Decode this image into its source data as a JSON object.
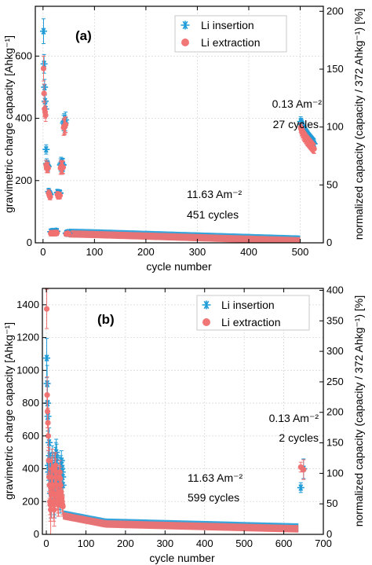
{
  "colors": {
    "insertion": "#1f9bd7",
    "extraction": "#f07070"
  },
  "chart_data": [
    {
      "type": "scatter",
      "panel_label": "(a)",
      "xlabel": "cycle number",
      "ylabel": "gravimetric charge capacity [Ahkg⁻¹]",
      "ylabel_right": "normalized capacity (capacity / 372 Ahkg⁻¹) [%]",
      "xlim": [
        -15,
        545
      ],
      "ylim": [
        0,
        760
      ],
      "y2lim": [
        0,
        204.3
      ],
      "xticks": [
        0,
        100,
        200,
        300,
        400,
        500
      ],
      "yticks": [
        0,
        200,
        400,
        600
      ],
      "y2ticks": [
        0,
        50,
        100,
        150,
        200
      ],
      "grid": true,
      "legend_position": "top-right",
      "legend": [
        "Li insertion",
        "Li extraction"
      ],
      "annotations": [
        {
          "lines": [
            "0.13 Am⁻²",
            "27 cycles"
          ],
          "anchor": [
            480,
            440
          ]
        },
        {
          "lines": [
            "11.63 Am⁻²",
            "451 cycles"
          ],
          "anchor": [
            125,
            250
          ]
        }
      ],
      "series": [
        {
          "name": "Li insertion",
          "marker": "star",
          "x": [
            1,
            2,
            3,
            4,
            5,
            6,
            7,
            8,
            9,
            10,
            11,
            12,
            13,
            14,
            15,
            16,
            17,
            18,
            19,
            20,
            21,
            22,
            23,
            24,
            25,
            26,
            27,
            28,
            29,
            30,
            31,
            32,
            33,
            34,
            35,
            36,
            37,
            38,
            39,
            40,
            41,
            42,
            43,
            44,
            45,
            46,
            47,
            48,
            49,
            50,
            501,
            502,
            503,
            504,
            505,
            506,
            507,
            508,
            509,
            510,
            511,
            512,
            513,
            514,
            515,
            516,
            517,
            518,
            519,
            520,
            521,
            522,
            523,
            524,
            525,
            526,
            527
          ],
          "y": [
            680,
            575,
            500,
            455,
            430,
            300,
            255,
            250,
            248,
            245,
            165,
            160,
            158,
            155,
            36,
            35,
            34,
            36,
            37,
            35,
            34,
            33,
            36,
            35,
            38,
            36,
            37,
            162,
            160,
            158,
            161,
            159,
            160,
            250,
            255,
            250,
            248,
            252,
            250,
            385,
            390,
            380,
            385,
            395,
            30,
            32,
            31,
            33,
            30,
            31,
            390,
            385,
            380,
            375,
            370,
            365,
            362,
            360,
            358,
            355,
            352,
            350,
            348,
            345,
            343,
            340,
            338,
            336,
            334,
            332,
            330,
            328,
            326,
            324,
            322,
            320,
            318
          ],
          "err": [
            40,
            30,
            25,
            20,
            20,
            15,
            15,
            15,
            15,
            15,
            10,
            10,
            10,
            10,
            8,
            8,
            8,
            8,
            8,
            8,
            8,
            8,
            8,
            8,
            8,
            8,
            8,
            10,
            10,
            10,
            10,
            10,
            10,
            20,
            20,
            20,
            20,
            20,
            20,
            25,
            25,
            25,
            25,
            25,
            6,
            6,
            6,
            6,
            6,
            6,
            15,
            15,
            15,
            15,
            15,
            15,
            15,
            15,
            15,
            15,
            15,
            15,
            15,
            15,
            15,
            15,
            15,
            15,
            15,
            15,
            15,
            15,
            15,
            15,
            15,
            15,
            15
          ]
        },
        {
          "name": "Li extraction",
          "marker": "circle",
          "x": [
            1,
            2,
            3,
            4,
            5,
            6,
            7,
            8,
            9,
            10,
            11,
            12,
            13,
            14,
            15,
            16,
            17,
            18,
            19,
            20,
            21,
            22,
            23,
            24,
            25,
            26,
            27,
            28,
            29,
            30,
            31,
            32,
            33,
            34,
            35,
            36,
            37,
            38,
            39,
            40,
            41,
            42,
            43,
            44,
            45,
            46,
            47,
            48,
            49,
            50,
            501,
            502,
            503,
            504,
            505,
            506,
            507,
            508,
            509,
            510,
            511,
            512,
            513,
            514,
            515,
            516,
            517,
            518,
            519,
            520,
            521,
            522,
            523,
            524,
            525,
            526,
            527
          ],
          "y": [
            560,
            480,
            430,
            420,
            410,
            250,
            240,
            245,
            242,
            240,
            160,
            155,
            150,
            148,
            30,
            32,
            31,
            30,
            32,
            31,
            30,
            31,
            32,
            30,
            33,
            31,
            32,
            155,
            152,
            150,
            153,
            151,
            152,
            240,
            245,
            242,
            240,
            244,
            242,
            370,
            375,
            372,
            378,
            380,
            28,
            30,
            29,
            31,
            28,
            29,
            370,
            365,
            360,
            356,
            352,
            348,
            345,
            342,
            340,
            338,
            335,
            333,
            330,
            328,
            326,
            324,
            322,
            320,
            318,
            316,
            314,
            312,
            310,
            308,
            306,
            304,
            302
          ],
          "err": [
            40,
            30,
            25,
            20,
            20,
            15,
            15,
            15,
            15,
            15,
            10,
            10,
            10,
            10,
            8,
            8,
            8,
            8,
            8,
            8,
            8,
            8,
            8,
            8,
            8,
            8,
            8,
            10,
            10,
            10,
            10,
            10,
            10,
            20,
            20,
            20,
            20,
            20,
            20,
            25,
            25,
            25,
            25,
            25,
            6,
            6,
            6,
            6,
            6,
            6,
            15,
            15,
            15,
            15,
            15,
            15,
            15,
            15,
            15,
            15,
            15,
            15,
            15,
            15,
            15,
            15,
            15,
            15,
            15,
            15,
            15,
            15,
            15,
            15,
            15,
            15,
            15
          ]
        }
      ],
      "band": {
        "description_of": "11.63 Am⁻² cycles",
        "x_start": 50,
        "x_end": 500,
        "y_start": 32,
        "y_mid_x": 100,
        "y_mid": 30,
        "y_end": 10
      }
    },
    {
      "type": "scatter",
      "panel_label": "(b)",
      "xlabel": "cycle number",
      "ylabel": "gravimetric charge capacity [Ahkg⁻¹]",
      "ylabel_right": "normalized capacity (capacity / 372 Ahkg⁻¹) [%]",
      "xlim": [
        -10,
        700
      ],
      "ylim": [
        0,
        1500
      ],
      "y2lim": [
        0,
        403.2
      ],
      "xticks": [
        0,
        100,
        200,
        300,
        400,
        500,
        600,
        700
      ],
      "yticks": [
        0,
        200,
        400,
        600,
        800,
        1000,
        1200,
        1400
      ],
      "y2ticks": [
        0,
        50,
        100,
        150,
        200,
        250,
        300,
        350,
        400
      ],
      "grid": true,
      "legend_position": "top-right",
      "legend": [
        "Li insertion",
        "Li extraction"
      ],
      "annotations": [
        {
          "lines": [
            "0.13 Am⁻²",
            "2 cycles"
          ],
          "anchor": [
            640,
            640
          ]
        },
        {
          "lines": [
            "11.63 Am⁻²",
            "599 cycles"
          ],
          "anchor": [
            330,
            250
          ]
        }
      ],
      "series": [
        {
          "name": "Li insertion",
          "marker": "star",
          "x": [
            1,
            2,
            3,
            4,
            5,
            6,
            7,
            8,
            9,
            10,
            11,
            12,
            13,
            14,
            15,
            16,
            17,
            18,
            19,
            20,
            21,
            22,
            23,
            24,
            25,
            26,
            27,
            28,
            29,
            30,
            31,
            32,
            33,
            34,
            35,
            36,
            37,
            38,
            39,
            40,
            41,
            42,
            643,
            650
          ],
          "y": [
            1075,
            920,
            800,
            720,
            420,
            380,
            560,
            480,
            350,
            300,
            250,
            300,
            250,
            400,
            420,
            380,
            300,
            280,
            250,
            220,
            200,
            350,
            450,
            480,
            500,
            470,
            420,
            380,
            350,
            300,
            280,
            260,
            240,
            220,
            200,
            300,
            420,
            450,
            400,
            380,
            350,
            300,
            285,
            400
          ],
          "err": [
            120,
            110,
            100,
            90,
            90,
            80,
            90,
            80,
            80,
            100,
            150,
            150,
            150,
            120,
            120,
            120,
            100,
            100,
            100,
            100,
            100,
            90,
            80,
            80,
            80,
            80,
            80,
            80,
            80,
            80,
            70,
            70,
            70,
            70,
            70,
            70,
            60,
            60,
            60,
            60,
            60,
            60,
            30,
            60
          ]
        },
        {
          "name": "Li extraction",
          "marker": "circle",
          "x": [
            1,
            2,
            3,
            4,
            5,
            6,
            7,
            8,
            9,
            10,
            11,
            12,
            13,
            14,
            15,
            16,
            17,
            18,
            19,
            20,
            21,
            22,
            23,
            24,
            25,
            26,
            27,
            28,
            29,
            30,
            31,
            32,
            33,
            34,
            35,
            36,
            37,
            38,
            39,
            40,
            41,
            42,
            643,
            650
          ],
          "y": [
            1375,
            850,
            750,
            680,
            600,
            450,
            350,
            300,
            200,
            180,
            150,
            250,
            300,
            350,
            400,
            300,
            250,
            200,
            180,
            150,
            300,
            400,
            420,
            380,
            350,
            300,
            250,
            230,
            210,
            190,
            180,
            260,
            350,
            380,
            340,
            300,
            260,
            240,
            220,
            200,
            180,
            170,
            410,
            395
          ],
          "err": [
            120,
            110,
            100,
            90,
            90,
            80,
            90,
            80,
            80,
            100,
            150,
            150,
            150,
            120,
            120,
            120,
            100,
            100,
            100,
            100,
            100,
            90,
            80,
            80,
            80,
            80,
            80,
            80,
            80,
            80,
            70,
            70,
            70,
            70,
            70,
            70,
            60,
            60,
            60,
            60,
            60,
            60,
            30,
            60
          ]
        }
      ],
      "band": {
        "description_of": "11.63 Am⁻² cycles",
        "x_start": 42,
        "x_end": 640,
        "y_start": 120,
        "y_mid_x": 150,
        "y_mid": 70,
        "y_end": 40
      }
    }
  ]
}
